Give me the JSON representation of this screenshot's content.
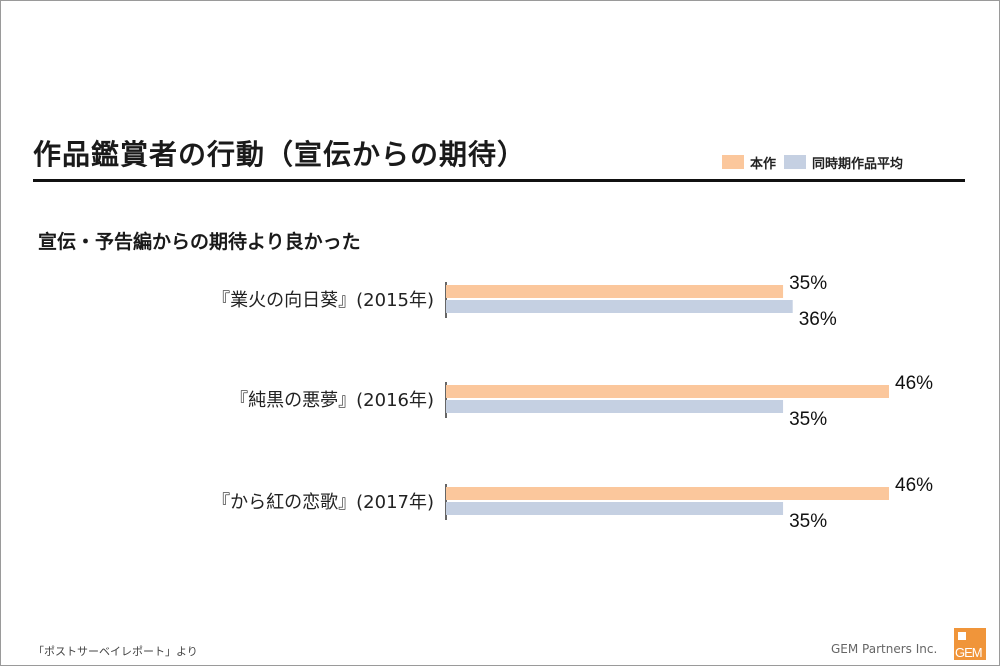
{
  "slide": {
    "title": "作品鑑賞者の行動（宣伝からの期待）",
    "subtitle": "宣伝・予告編からの期待より良かった",
    "source_note": "「ポストサーベイレポート」より",
    "company": "GEM Partners Inc.",
    "logo_text": "GEM"
  },
  "legend": [
    {
      "label": "本作",
      "color": "#fbc79c"
    },
    {
      "label": "同時期作品平均",
      "color": "#c5d0e2"
    }
  ],
  "chart_data": {
    "type": "bar",
    "orientation": "horizontal",
    "categories": [
      "『業火の向日葵』(2015年)",
      "『純黒の悪夢』(2016年)",
      "『から紅の恋歌』(2017年)"
    ],
    "series": [
      {
        "name": "本作",
        "color": "#fbc79c",
        "values": [
          35,
          46,
          46
        ],
        "labels": [
          "35%",
          "46%",
          "46%"
        ]
      },
      {
        "name": "同時期作品平均",
        "color": "#c5d0e2",
        "values": [
          36,
          35,
          35
        ],
        "labels": [
          "36%",
          "35%",
          "35%"
        ]
      }
    ],
    "xlim": [
      0,
      46
    ],
    "grid": false
  }
}
